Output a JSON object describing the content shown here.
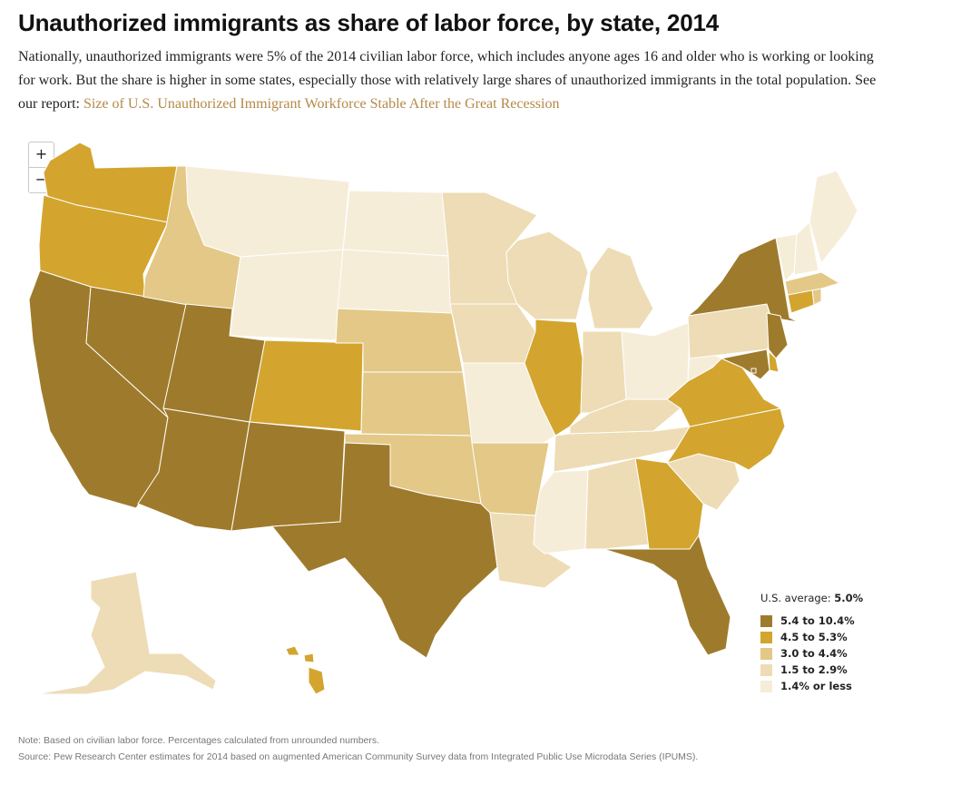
{
  "header": {
    "title": "Unauthorized immigrants as share of labor force, by state, 2014",
    "subtitle": "Nationally, unauthorized immigrants were 5% of the 2014 civilian labor force, which includes anyone ages 16 and older who is working or looking for work. But the share is higher in some states, especially those with relatively large shares of unauthorized immigrants in the total population. See our report: ",
    "report_link": "Size of U.S. Unauthorized Immigrant Workforce Stable After the Great Recession"
  },
  "zoom": {
    "in_label": "+",
    "out_label": "−"
  },
  "legend": {
    "avg_label": "U.S. average: ",
    "avg_value": "5.0%",
    "bins": [
      {
        "label": "5.4 to 10.4%",
        "color": "#9e7b2c"
      },
      {
        "label": "4.5 to 5.3%",
        "color": "#d3a52f"
      },
      {
        "label": "3.0 to 4.4%",
        "color": "#e3c887"
      },
      {
        "label": "1.5 to 2.9%",
        "color": "#eddcb5"
      },
      {
        "label": "1.4% or less",
        "color": "#f6edd9"
      }
    ]
  },
  "states": [
    {
      "name": "Washington",
      "bin": 1
    },
    {
      "name": "Oregon",
      "bin": 1
    },
    {
      "name": "California",
      "bin": 0
    },
    {
      "name": "Nevada",
      "bin": 0
    },
    {
      "name": "Idaho",
      "bin": 2
    },
    {
      "name": "Montana",
      "bin": 4
    },
    {
      "name": "Wyoming",
      "bin": 4
    },
    {
      "name": "Utah",
      "bin": 0
    },
    {
      "name": "Arizona",
      "bin": 0
    },
    {
      "name": "Colorado",
      "bin": 1
    },
    {
      "name": "New Mexico",
      "bin": 0
    },
    {
      "name": "North Dakota",
      "bin": 4
    },
    {
      "name": "South Dakota",
      "bin": 4
    },
    {
      "name": "Nebraska",
      "bin": 2
    },
    {
      "name": "Kansas",
      "bin": 2
    },
    {
      "name": "Oklahoma",
      "bin": 2
    },
    {
      "name": "Texas",
      "bin": 0
    },
    {
      "name": "Minnesota",
      "bin": 3
    },
    {
      "name": "Iowa",
      "bin": 3
    },
    {
      "name": "Missouri",
      "bin": 4
    },
    {
      "name": "Arkansas",
      "bin": 2
    },
    {
      "name": "Louisiana",
      "bin": 3
    },
    {
      "name": "Wisconsin",
      "bin": 3
    },
    {
      "name": "Illinois",
      "bin": 1
    },
    {
      "name": "Michigan",
      "bin": 3
    },
    {
      "name": "Indiana",
      "bin": 3
    },
    {
      "name": "Ohio",
      "bin": 4
    },
    {
      "name": "Kentucky",
      "bin": 3
    },
    {
      "name": "Tennessee",
      "bin": 3
    },
    {
      "name": "Mississippi",
      "bin": 4
    },
    {
      "name": "Alabama",
      "bin": 3
    },
    {
      "name": "Georgia",
      "bin": 1
    },
    {
      "name": "Florida",
      "bin": 0
    },
    {
      "name": "South Carolina",
      "bin": 3
    },
    {
      "name": "North Carolina",
      "bin": 1
    },
    {
      "name": "Virginia",
      "bin": 1
    },
    {
      "name": "West Virginia",
      "bin": 4
    },
    {
      "name": "Pennsylvania",
      "bin": 3
    },
    {
      "name": "New York",
      "bin": 0
    },
    {
      "name": "New Jersey",
      "bin": 0
    },
    {
      "name": "Delaware",
      "bin": 1
    },
    {
      "name": "Maryland",
      "bin": 0
    },
    {
      "name": "District of Columbia",
      "bin": 0
    },
    {
      "name": "Connecticut",
      "bin": 1
    },
    {
      "name": "Rhode Island",
      "bin": 2
    },
    {
      "name": "Massachusetts",
      "bin": 2
    },
    {
      "name": "Vermont",
      "bin": 4
    },
    {
      "name": "New Hampshire",
      "bin": 4
    },
    {
      "name": "Maine",
      "bin": 4
    },
    {
      "name": "Alaska",
      "bin": 3
    },
    {
      "name": "Hawaii",
      "bin": 1
    }
  ],
  "footer": {
    "note": "Note: Based on civilian labor force. Percentages calculated from unrounded numbers.",
    "source": "Source: Pew Research Center estimates for 2014 based on augmented American Community Survey data from Integrated Public Use Microdata Series (IPUMS)."
  }
}
